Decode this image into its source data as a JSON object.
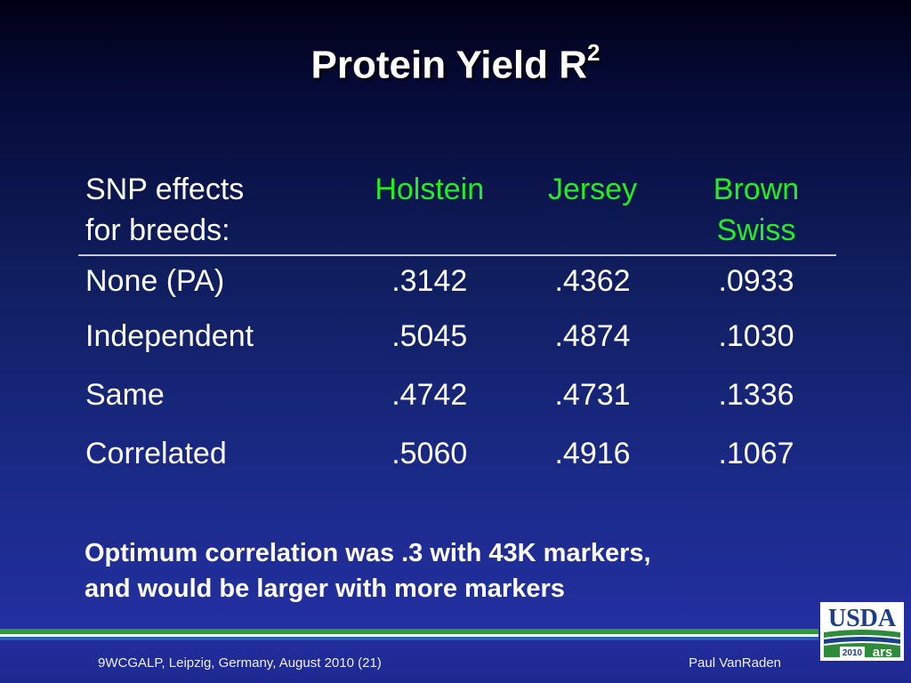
{
  "slide": {
    "title": "Protein Yield R",
    "title_superscript": "2",
    "table": {
      "header_label_line1": "SNP effects",
      "header_label_line2": "for breeds:",
      "breeds": [
        {
          "line1": "Holstein",
          "line2": ""
        },
        {
          "line1": "Jersey",
          "line2": ""
        },
        {
          "line1": "Brown",
          "line2": "Swiss"
        }
      ],
      "rows": [
        {
          "label": "None (PA)",
          "values": [
            ".3142",
            ".4362",
            ".0933"
          ]
        },
        {
          "label": "Independent",
          "values": [
            ".5045",
            ".4874",
            ".1030"
          ]
        },
        {
          "label": "Same",
          "values": [
            ".4742",
            ".4731",
            ".1336"
          ]
        },
        {
          "label": "Correlated",
          "values": [
            ".5060",
            ".4916",
            ".1067"
          ]
        }
      ]
    },
    "note_line1": "Optimum correlation was .3 with 43K markers,",
    "note_line2": "and would be larger with more markers",
    "footer_left": "9WCGALP, Leipzig, Germany, August 2010 (21)",
    "footer_right": "Paul VanRaden",
    "logo": {
      "text": "USDA",
      "year": "2010",
      "mark": "ars"
    },
    "colors": {
      "breed_header": "#22ee22",
      "text": "#ffffff",
      "rule_green": "#2e9a3a",
      "rule_blue": "#2a5fae"
    }
  }
}
